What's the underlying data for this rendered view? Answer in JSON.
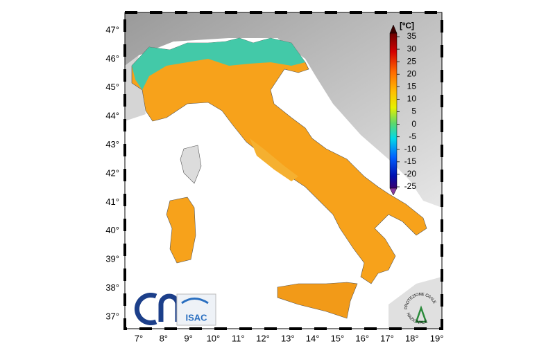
{
  "map": {
    "lat_labels": [
      "47°",
      "46°",
      "45°",
      "44°",
      "43°",
      "42°",
      "41°",
      "40°",
      "39°",
      "38°",
      "37°"
    ],
    "lon_labels": [
      "7°",
      "8°",
      "9°",
      "10°",
      "11°",
      "12°",
      "13°",
      "14°",
      "15°",
      "16°",
      "17°",
      "18°",
      "19°"
    ]
  },
  "colorbar": {
    "unit": "[ºC]",
    "ticks": [
      35,
      30,
      25,
      20,
      15,
      10,
      5,
      0,
      -5,
      -10,
      -15,
      -20,
      -25
    ]
  },
  "logos": {
    "isac": "ISAC",
    "protezione_top": "PROTEZIONE CIVILE",
    "protezione_bottom": "NAZIONALE"
  }
}
